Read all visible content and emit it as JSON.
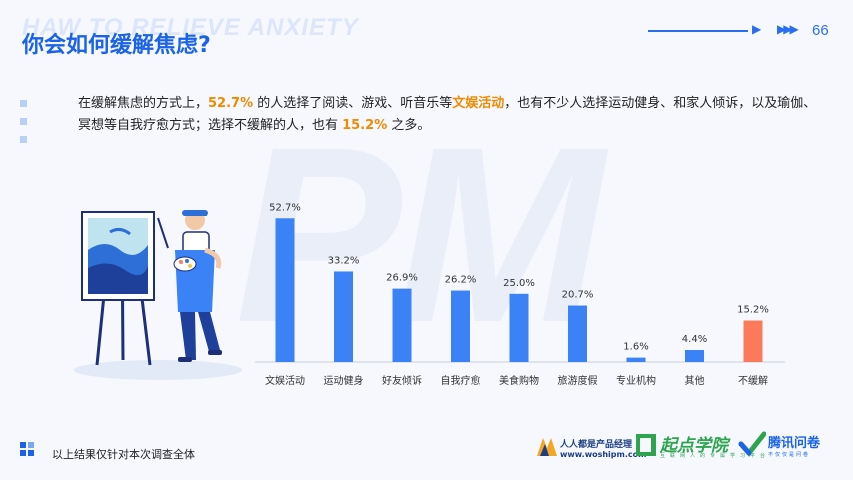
{
  "header": {
    "bg_english": "HAW TO RELIEVE ANXIETY",
    "title": "你会如何缓解焦虑?",
    "page_number": "66"
  },
  "watermark": "PM",
  "description": {
    "p1": "在缓解焦虑的方式上，",
    "h1": "52.7%",
    "p2": " 的人选择了阅读、游戏、听音乐等",
    "h2": "文娱活动",
    "p3": "，也有不少人选择运动健身、和家人倾诉，以及瑜伽、冥想等自我疗愈方式；选择不缓解的人，也有 ",
    "h3": "15.2%",
    "p4": " 之多。"
  },
  "chart_data": {
    "type": "bar",
    "categories": [
      "文娱活动",
      "运动健身",
      "好友倾诉",
      "自我疗愈",
      "美食购物",
      "旅游度假",
      "专业机构",
      "其他",
      "不缓解"
    ],
    "values": [
      52.7,
      33.2,
      26.9,
      26.2,
      25.0,
      20.7,
      1.6,
      4.4,
      15.2
    ],
    "value_labels": [
      "52.7%",
      "33.2%",
      "26.9%",
      "26.2%",
      "25.0%",
      "20.7%",
      "1.6%",
      "4.4%",
      "15.2%"
    ],
    "bar_colors": [
      "#3b82f6",
      "#3b82f6",
      "#3b82f6",
      "#3b82f6",
      "#3b82f6",
      "#3b82f6",
      "#3b82f6",
      "#3b82f6",
      "#fb7a5c"
    ],
    "ylim": [
      0,
      55
    ],
    "title": "",
    "xlabel": "",
    "ylabel": "",
    "grid": false
  },
  "footer": {
    "note": "以上结果仅针对本次调查全体"
  },
  "logos": {
    "logo1_name": "人人都是产品经理",
    "logo1_url": "www.woshipm.com",
    "logo2_name": "起点学院",
    "logo2_sub": "互联网人的专属学习平台",
    "logo3_name": "腾讯问卷",
    "logo3_sub": "不仅仅是问卷",
    "colors": {
      "logo1": "#1b3f84",
      "logo2": "#2ea44f",
      "logo3": "#1a63e8"
    }
  },
  "illustration": "painter-at-easel"
}
